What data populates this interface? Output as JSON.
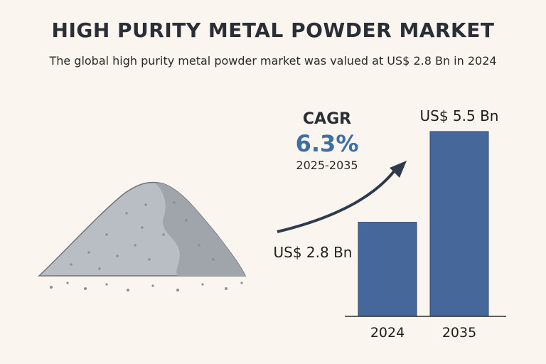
{
  "title": "HIGH PURITY METAL POWDER MARKET",
  "subtitle": "The global high purity metal powder market was valued at US$ 2.8 Bn in 2024",
  "cagr": {
    "label": "CAGR",
    "value": "6.3%",
    "period": "2025-2035"
  },
  "colors": {
    "bar": "#46679a",
    "accent": "#3f6ea3",
    "arrow": "#2e3b4c",
    "powder": "#b4b8bf"
  },
  "chart_data": {
    "type": "bar",
    "categories": [
      "2024",
      "2035"
    ],
    "values": [
      2.8,
      5.5
    ],
    "value_labels": [
      "US$ 2.8 Bn",
      "US$ 5.5 Bn"
    ],
    "title": "",
    "xlabel": "",
    "ylabel": "",
    "ylim": [
      0,
      5.5
    ]
  }
}
